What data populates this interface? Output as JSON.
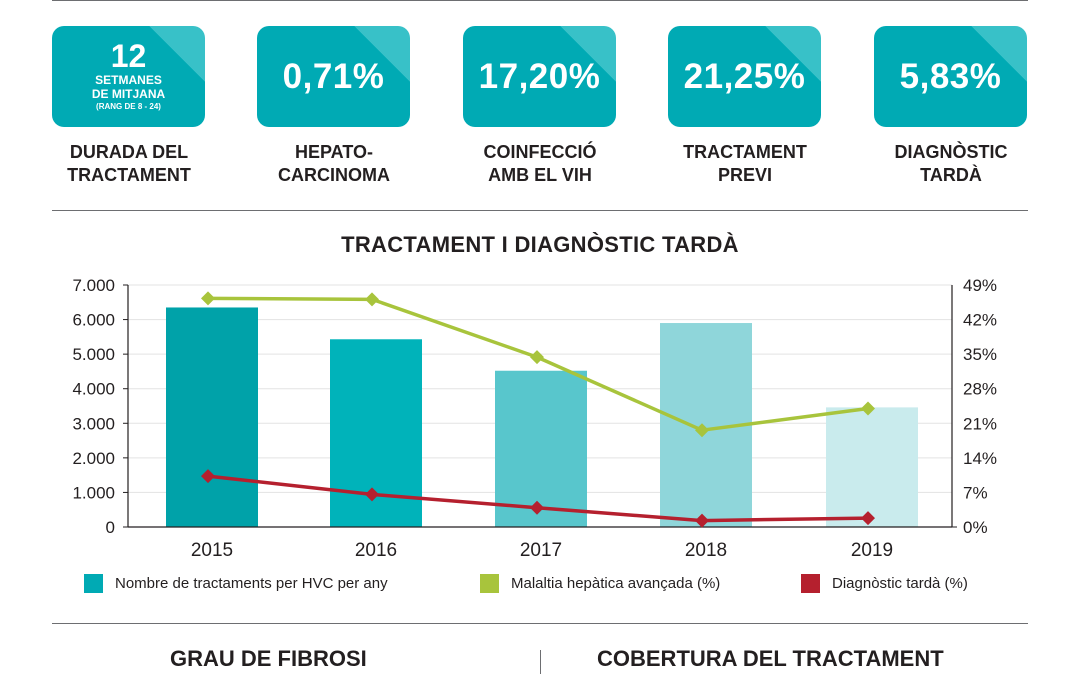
{
  "kpis": [
    {
      "value": "12",
      "sub1": "SETMANES",
      "sub2": "DE MITJANA",
      "sub3": "(RANG DE 8 - 24)",
      "label1": "DURADA DEL",
      "label2": "TRACTAMENT"
    },
    {
      "value": "0,71%",
      "label1": "HEPATO-",
      "label2": "CARCINOMA"
    },
    {
      "value": "17,20%",
      "label1": "COINFECCIÓ",
      "label2": "AMB EL VIH"
    },
    {
      "value": "21,25%",
      "label1": "TRACTAMENT",
      "label2": "PREVI"
    },
    {
      "value": "5,83%",
      "label1": "DIAGNÒSTIC",
      "label2": "TARDÀ"
    }
  ],
  "chart_data": {
    "type": "bar",
    "title": "TRACTAMENT I DIAGNÒSTIC TARDÀ",
    "categories": [
      "2015",
      "2016",
      "2017",
      "2018",
      "2019"
    ],
    "y_left": {
      "range": [
        0,
        7000
      ],
      "ticks": [
        0,
        1000,
        2000,
        3000,
        4000,
        5000,
        6000,
        7000
      ],
      "tick_labels": [
        "0",
        "1.000",
        "2.000",
        "3.000",
        "4.000",
        "5.000",
        "6.000",
        "7.000"
      ]
    },
    "y_right": {
      "range": [
        0,
        49
      ],
      "ticks": [
        0,
        7,
        14,
        21,
        28,
        35,
        42,
        49
      ],
      "tick_labels": [
        "0%",
        "7%",
        "14%",
        "21%",
        "28%",
        "35%",
        "42%",
        "49%"
      ]
    },
    "grid": true,
    "legend_position": "bottom",
    "series": [
      {
        "name": "Nombre de tractaments per HVC per any",
        "type": "bar",
        "axis": "left",
        "values": [
          6350,
          5430,
          4520,
          5900,
          3460
        ],
        "colors": [
          "#00a2a9",
          "#00b3ba",
          "#58c6cc",
          "#8fd6da",
          "#c9ebed"
        ],
        "legend_color": "#00aab4"
      },
      {
        "name": "Malaltia hepàtica avançada (%)",
        "type": "line",
        "axis": "right",
        "values": [
          46.3,
          46.1,
          34.4,
          19.6,
          24
        ],
        "color": "#a8c43c"
      },
      {
        "name": "Diagnòstic tardà (%)",
        "type": "line",
        "axis": "right",
        "values": [
          10.3,
          6.6,
          3.9,
          1.3,
          1.8
        ],
        "color": "#b5202e"
      }
    ]
  },
  "bottom": {
    "left_heading": "GRAU DE FIBROSI",
    "right_heading": "COBERTURA DEL TRACTAMENT"
  }
}
